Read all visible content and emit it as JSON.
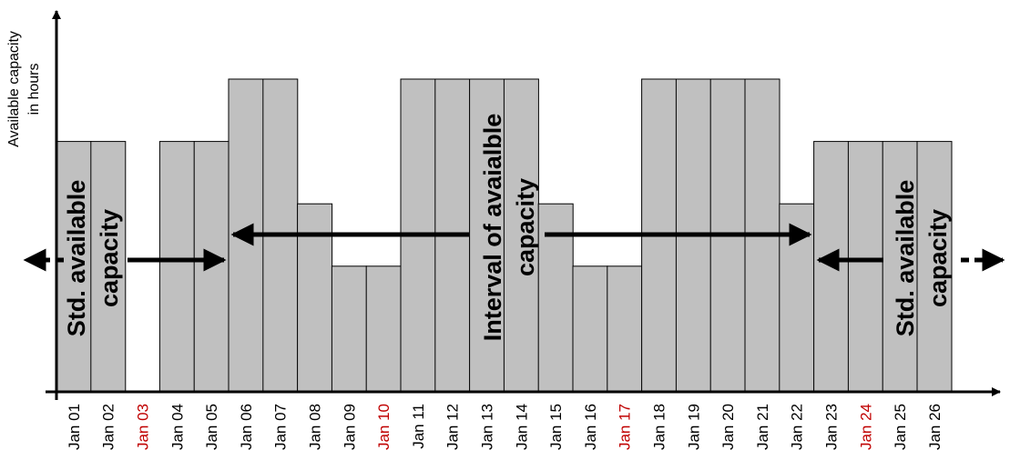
{
  "colors": {
    "bar_fill": "#c0c0c0",
    "bar_stroke": "#000000",
    "axis": "#000000",
    "weekend_label": "#c00000",
    "label": "#000000"
  },
  "chart_data": {
    "type": "bar",
    "title": "",
    "xlabel": "",
    "ylabel_lines": [
      "Available capacity",
      "in hours"
    ],
    "categories": [
      "Jan 01",
      "Jan 02",
      "Jan 03",
      "Jan 04",
      "Jan 05",
      "Jan 06",
      "Jan 07",
      "Jan 08",
      "Jan 09",
      "Jan 10",
      "Jan 11",
      "Jan 12",
      "Jan 13",
      "Jan 14",
      "Jan 15",
      "Jan 16",
      "Jan 17",
      "Jan 18",
      "Jan 19",
      "Jan 20",
      "Jan 21",
      "Jan 22",
      "Jan 23",
      "Jan 24",
      "Jan 25",
      "Jan 26"
    ],
    "values": [
      8,
      8,
      0,
      8,
      8,
      10,
      10,
      6,
      4,
      4,
      10,
      10,
      10,
      10,
      6,
      4,
      4,
      10,
      10,
      10,
      10,
      6,
      8,
      8,
      8,
      8
    ],
    "ylim": [
      0,
      12
    ],
    "highlighted_categories": [
      "Jan 03",
      "Jan 10",
      "Jan 17",
      "Jan 24"
    ],
    "grid": false,
    "annotations": {
      "left": [
        "Std. available",
        "capacity"
      ],
      "middle": [
        "Interval of avaialble",
        "capacity"
      ],
      "right": [
        "Std. available",
        "capacity"
      ]
    }
  }
}
